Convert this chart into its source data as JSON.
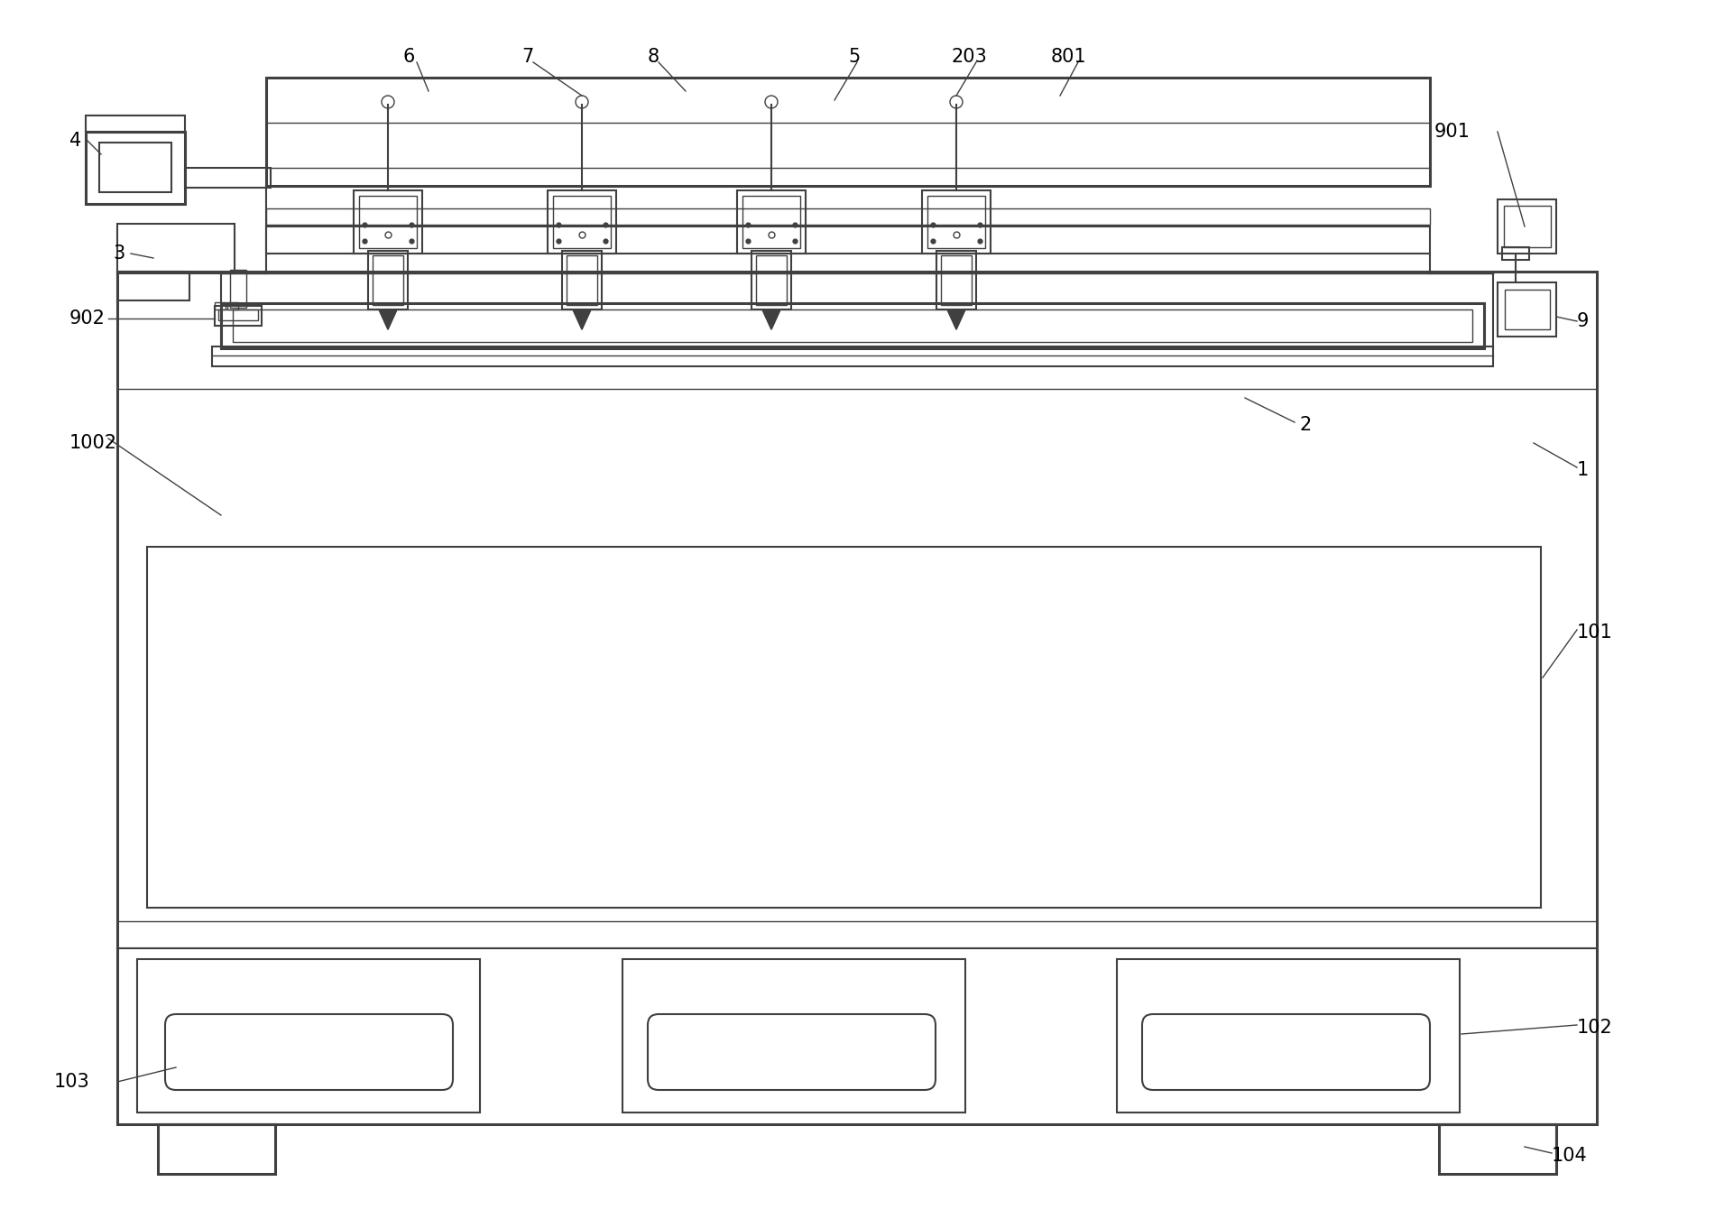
{
  "bg_color": "#ffffff",
  "line_color": "#404040",
  "lw_thick": 2.2,
  "lw_med": 1.5,
  "lw_thin": 1.0,
  "label_fontsize": 15,
  "fig_width": 19.01,
  "fig_height": 13.61
}
